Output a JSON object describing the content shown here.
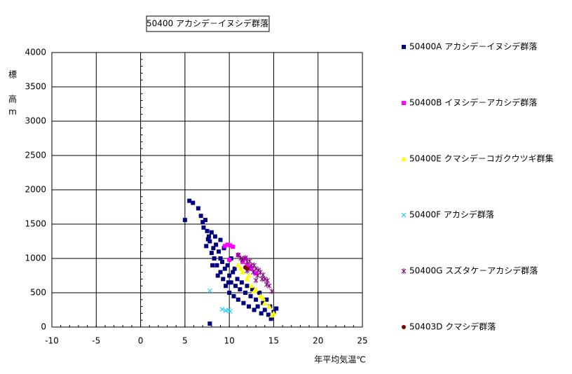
{
  "chart_data": {
    "type": "scatter",
    "title": "50400 アカシデ－イヌシデ群落",
    "x_label": "年平均気温℃",
    "y_label": [
      "標",
      "高",
      "m"
    ],
    "xlim": [
      -10,
      25
    ],
    "xticks": [
      -10,
      -5,
      0,
      5,
      10,
      15,
      20,
      25
    ],
    "ylim": [
      0,
      4000
    ],
    "yticks": [
      0,
      500,
      1000,
      1500,
      2000,
      2500,
      3000,
      3500,
      4000
    ],
    "grid": true,
    "legend": "right",
    "series": [
      {
        "name": "50400A アカシデ－イヌシデ群落",
        "color": "#000080",
        "marker": "square",
        "x": [
          5,
          5.5,
          5.9,
          6.5,
          6.8,
          7.0,
          7.1,
          7.3,
          7.5,
          7.7,
          7.4,
          7.8,
          8.0,
          8.2,
          8.3,
          8.5,
          8.6,
          8.8,
          9.0,
          9.0,
          9.2,
          9.3,
          9.5,
          9.6,
          9.8,
          10.0,
          10.0,
          10.2,
          10.4,
          10.5,
          10.7,
          10.9,
          11.0,
          11.2,
          11.4,
          11.6,
          11.8,
          12.0,
          12.2,
          12.4,
          12.6,
          12.8,
          13.0,
          13.2,
          13.4,
          13.6,
          13.8,
          14.0,
          14.2,
          14.4,
          14.6,
          14.8,
          15.0,
          15.3,
          14.7,
          7.8,
          9.0,
          8.4,
          8.0,
          9.4,
          10.2,
          8.7,
          9.9,
          10.6,
          7.6,
          8.1
        ],
        "values": [
          1560,
          1840,
          1810,
          1730,
          1620,
          1530,
          1450,
          1560,
          1400,
          1320,
          1180,
          1250,
          1380,
          1150,
          1000,
          1200,
          900,
          1100,
          1000,
          800,
          950,
          700,
          850,
          600,
          900,
          750,
          500,
          650,
          800,
          450,
          600,
          700,
          400,
          550,
          650,
          350,
          500,
          600,
          300,
          450,
          550,
          250,
          400,
          300,
          500,
          200,
          350,
          250,
          400,
          180,
          300,
          150,
          220,
          270,
          120,
          50,
          1270,
          1320,
          1080,
          1150,
          1000,
          750,
          650,
          850,
          1280,
          900
        ]
      },
      {
        "name": "50400B イヌシデ－アカシデ群落",
        "color": "#ff00ff",
        "marker": "square",
        "x": [
          9.5,
          9.8,
          10.1,
          10.4,
          10.0,
          11.0,
          11.5,
          12.0,
          12.5,
          13.0,
          11.8,
          12.3
        ],
        "values": [
          1180,
          1200,
          1190,
          1170,
          980,
          1050,
          950,
          900,
          850,
          780,
          1000,
          880
        ]
      },
      {
        "name": "50400E クマシデ－コガクウツギ群集",
        "color": "#ffff00",
        "marker": "triangle",
        "x": [
          11.0,
          11.5,
          12.0,
          12.5,
          13.0,
          13.5,
          14.0,
          14.5,
          15.0,
          12.8,
          11.3,
          13.8,
          14.8,
          12.2
        ],
        "values": [
          900,
          800,
          700,
          600,
          550,
          450,
          350,
          300,
          200,
          520,
          850,
          420,
          170,
          750
        ]
      },
      {
        "name": "50400F アカシデ群落",
        "color": "#00ccff",
        "marker": "cross",
        "x": [
          7.8,
          9.2,
          9.6,
          9.9,
          10.1
        ],
        "values": [
          530,
          260,
          240,
          250,
          230
        ]
      },
      {
        "name": "50400G スズタケ－アカシデ群落",
        "color": "#800080",
        "marker": "star",
        "x": [
          11.0,
          11.5,
          12.0,
          12.5,
          13.0,
          13.5,
          14.0,
          14.5,
          11.8,
          12.3,
          12.8,
          13.3,
          13.8,
          14.3,
          14.8,
          12.2,
          12.7,
          13.2,
          13.7,
          14.2,
          11.3,
          12.0,
          13.0
        ],
        "values": [
          1050,
          980,
          950,
          900,
          850,
          800,
          700,
          600,
          1010,
          960,
          900,
          830,
          760,
          680,
          520,
          850,
          800,
          750,
          700,
          620,
          1000,
          820,
          680
        ]
      },
      {
        "name": "50403D クマシデ群落",
        "color": "#800000",
        "marker": "circle",
        "x": [
          11.8,
          12.0
        ],
        "values": [
          870,
          850
        ]
      }
    ]
  }
}
